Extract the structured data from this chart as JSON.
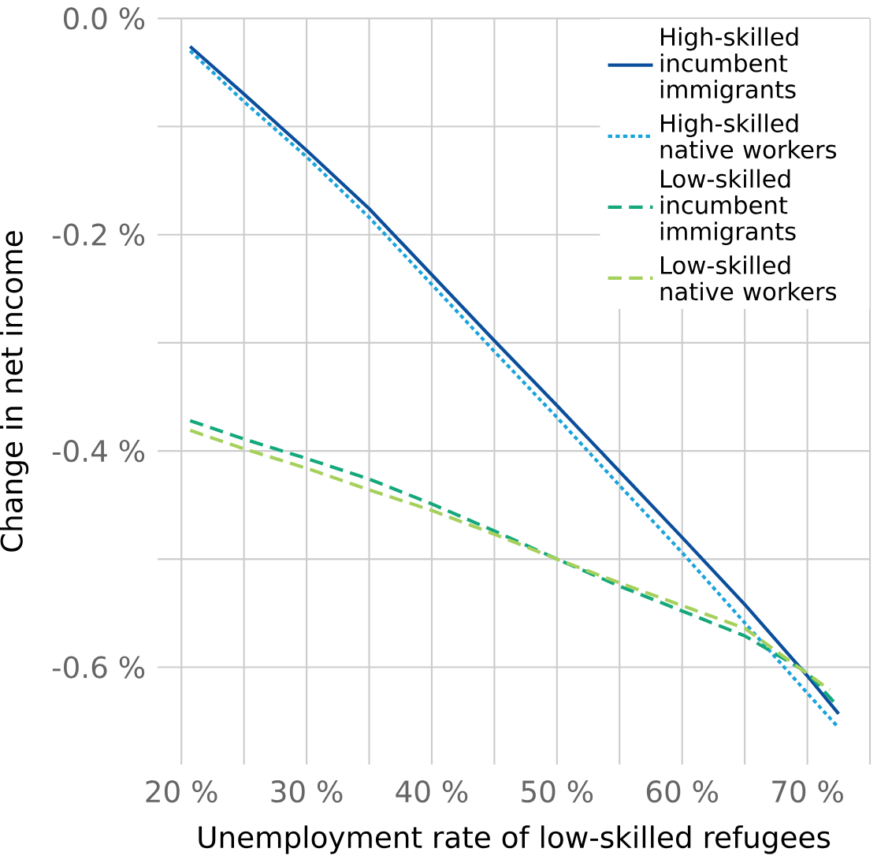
{
  "chart_data": {
    "type": "line",
    "xlabel": "Unemployment rate of low-skilled refugees",
    "ylabel": "Change in net income",
    "xlim": [
      18.1,
      75
    ],
    "ylim": [
      -0.69,
      0.0
    ],
    "xticks": [
      {
        "value": 20,
        "label": "20 %"
      },
      {
        "value": 25,
        "label": null
      },
      {
        "value": 30,
        "label": "30 %"
      },
      {
        "value": 35,
        "label": null
      },
      {
        "value": 40,
        "label": "40 %"
      },
      {
        "value": 45,
        "label": null
      },
      {
        "value": 50,
        "label": "50 %"
      },
      {
        "value": 55,
        "label": null
      },
      {
        "value": 60,
        "label": "60 %"
      },
      {
        "value": 65,
        "label": null
      },
      {
        "value": 70,
        "label": "70 %"
      },
      {
        "value": 75,
        "label": null
      }
    ],
    "yticks": [
      {
        "value": -0.6,
        "label": "-0.6 %"
      },
      {
        "value": -0.5,
        "label": null
      },
      {
        "value": -0.4,
        "label": "-0.4 %"
      },
      {
        "value": -0.3,
        "label": null
      },
      {
        "value": -0.2,
        "label": "-0.2 %"
      },
      {
        "value": -0.1,
        "label": null
      },
      {
        "value": 0.0,
        "label": "0.0 %"
      }
    ],
    "grid": true,
    "legend": "top right",
    "series": [
      {
        "name": "High-skilled incumbent immigrants",
        "color": "#0b4f9c",
        "line_style": "solid",
        "x": [
          20.7,
          25,
          30,
          35,
          40,
          45,
          50,
          55,
          60,
          65,
          70,
          72.5
        ],
        "values": [
          -0.026,
          -0.07,
          -0.122,
          -0.176,
          -0.237,
          -0.298,
          -0.358,
          -0.419,
          -0.48,
          -0.542,
          -0.608,
          -0.643
        ]
      },
      {
        "name": "High-skilled native workers",
        "color": "#1ba3db",
        "line_style": "dotted",
        "x": [
          20.7,
          25,
          30,
          35,
          40,
          45,
          50,
          55,
          60,
          65,
          70,
          72.5
        ],
        "values": [
          -0.03,
          -0.077,
          -0.128,
          -0.184,
          -0.246,
          -0.308,
          -0.369,
          -0.432,
          -0.494,
          -0.559,
          -0.624,
          -0.656
        ]
      },
      {
        "name": "Low-skilled incumbent immigrants",
        "color": "#14a87c",
        "line_style": "dashed",
        "x": [
          20.7,
          25,
          30,
          35,
          40,
          45,
          50,
          55,
          60,
          65,
          70,
          72.5
        ],
        "values": [
          -0.372,
          -0.389,
          -0.407,
          -0.426,
          -0.449,
          -0.474,
          -0.5,
          -0.525,
          -0.548,
          -0.571,
          -0.605,
          -0.637
        ]
      },
      {
        "name": "Low-skilled native workers",
        "color": "#a6d05c",
        "line_style": "dashed",
        "x": [
          20.7,
          25,
          30,
          35,
          40,
          45,
          50,
          55,
          60,
          65,
          70,
          71.8
        ],
        "values": [
          -0.381,
          -0.398,
          -0.416,
          -0.436,
          -0.455,
          -0.477,
          -0.5,
          -0.522,
          -0.543,
          -0.564,
          -0.606,
          -0.621
        ]
      }
    ]
  }
}
